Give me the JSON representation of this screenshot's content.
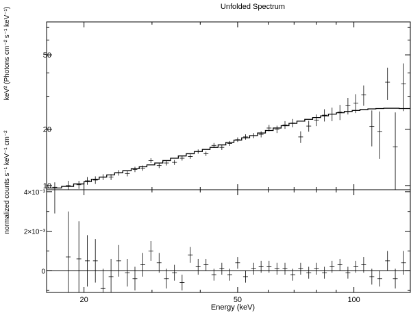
{
  "chart_data": [
    {
      "type": "scatter",
      "title": "Unfolded Spectrum",
      "xlabel": "Energy (keV)",
      "ylabel": "keV² (Photons cm⁻² s⁻¹ keV⁻¹)",
      "x_scale": "log",
      "y_scale": "log",
      "xlim": [
        16,
        140
      ],
      "ylim": [
        9.5,
        75
      ],
      "xticks": [
        20,
        50,
        100
      ],
      "yticks": [
        {
          "value": 10,
          "label": "10"
        },
        {
          "value": 20,
          "label": "20"
        },
        {
          "value": 50,
          "label": "50"
        }
      ],
      "series": [
        {
          "kind": "data_with_errorbars",
          "x": [
            16.8,
            18.2,
            19.4,
            20.4,
            21.4,
            22.4,
            23.5,
            24.6,
            25.9,
            27.1,
            28.4,
            29.8,
            31.3,
            32.7,
            34.3,
            35.9,
            37.7,
            39.5,
            41.4,
            43.4,
            45.5,
            47.7,
            50.0,
            52.4,
            55.0,
            57.5,
            60.3,
            63.2,
            66.3,
            69.5,
            72.8,
            76.4,
            80.0,
            83.9,
            87.8,
            92.0,
            96.5,
            101.2,
            106.0,
            111.3,
            116.7,
            122.2,
            128.0,
            134.5
          ],
          "y": [
            9.8,
            10.0,
            10.1,
            10.6,
            10.7,
            11.1,
            11.1,
            11.7,
            11.6,
            12.2,
            12.4,
            13.6,
            12.8,
            13.2,
            13.3,
            14.0,
            14.3,
            15.2,
            14.8,
            16.4,
            16.0,
            16.8,
            17.6,
            18.2,
            18.5,
            18.8,
            20.3,
            20.0,
            21.1,
            21.6,
            18.2,
            20.8,
            22.4,
            23.8,
            24.1,
            24.7,
            26.7,
            27.6,
            30.5,
            20.7,
            19.4,
            35.7,
            16.1,
            35.0
          ],
          "yerr": [
            0.6,
            0.6,
            0.5,
            0.5,
            0.5,
            0.4,
            0.4,
            0.4,
            0.4,
            0.4,
            0.4,
            0.4,
            0.4,
            0.4,
            0.4,
            0.4,
            0.4,
            0.4,
            0.4,
            0.5,
            0.5,
            0.5,
            0.5,
            0.6,
            0.6,
            0.7,
            0.8,
            0.9,
            1.0,
            1.1,
            1.3,
            1.4,
            1.6,
            1.8,
            2.0,
            2.3,
            2.7,
            3.2,
            3.8,
            4.5,
            5.5,
            7.0,
            8.5,
            10.0
          ]
        },
        {
          "kind": "model_step",
          "x_edges": [
            16.0,
            17.5,
            18.8,
            20.0,
            20.9,
            21.9,
            22.9,
            24.0,
            25.2,
            26.5,
            27.8,
            29.1,
            30.5,
            32.0,
            33.5,
            35.1,
            36.8,
            38.6,
            40.5,
            42.4,
            44.5,
            46.6,
            48.9,
            51.2,
            53.7,
            56.3,
            59.0,
            61.8,
            64.8,
            67.9,
            71.2,
            74.6,
            78.2,
            82.0,
            85.9,
            90.1,
            94.4,
            99.0,
            103.7,
            108.7,
            114.0,
            119.5,
            125.0,
            131.0,
            140.0
          ],
          "y": [
            9.7,
            9.9,
            10.2,
            10.5,
            10.8,
            11.1,
            11.4,
            11.7,
            12.0,
            12.3,
            12.6,
            12.9,
            13.2,
            13.6,
            14.0,
            14.4,
            14.8,
            15.2,
            15.6,
            16.0,
            16.5,
            17.0,
            17.5,
            18.0,
            18.5,
            19.1,
            19.7,
            20.3,
            20.9,
            21.5,
            22.1,
            22.6,
            23.1,
            23.6,
            24.1,
            24.5,
            24.9,
            25.2,
            25.5,
            25.7,
            25.8,
            25.9,
            25.9,
            25.8
          ]
        }
      ]
    },
    {
      "type": "scatter",
      "xlabel": "Energy (keV)",
      "ylabel": "normalized counts s⁻¹ keV⁻¹ cm⁻²",
      "x_scale": "log",
      "xlim": [
        16,
        140
      ],
      "ylim": [
        -0.0011,
        0.0041
      ],
      "xticks": [
        {
          "value": 20,
          "label": "20"
        },
        {
          "value": 50,
          "label": "50"
        },
        {
          "value": 100,
          "label": "100"
        }
      ],
      "yticks": [
        {
          "value": 0,
          "label": "0"
        },
        {
          "value": 0.002,
          "label": "2×10⁻³"
        },
        {
          "value": 0.004,
          "label": "4×10⁻³"
        }
      ],
      "zero_line": 0,
      "series": [
        {
          "kind": "data_with_errorbars",
          "x": [
            16.8,
            18.2,
            19.4,
            20.4,
            21.4,
            22.4,
            23.5,
            24.6,
            25.9,
            27.1,
            28.4,
            29.8,
            31.3,
            32.7,
            34.3,
            35.9,
            37.7,
            39.5,
            41.4,
            43.4,
            45.5,
            47.7,
            50.0,
            52.4,
            55.0,
            57.5,
            60.3,
            63.2,
            66.3,
            69.5,
            72.8,
            76.4,
            80.0,
            83.9,
            87.8,
            92.0,
            96.5,
            101.2,
            106.0,
            111.3,
            116.7,
            122.2,
            128.0,
            134.5
          ],
          "y": [
            0.0041,
            0.0007,
            0.0006,
            0.0005,
            0.0005,
            -0.0009,
            -0.0003,
            0.0005,
            -0.0001,
            -0.0004,
            0.0003,
            0.001,
            0.0004,
            -0.0004,
            -0.0001,
            -0.0006,
            0.0008,
            0.0002,
            0.0003,
            -0.0002,
            0.0001,
            -0.0002,
            0.0004,
            -0.0003,
            0.0001,
            0.0002,
            0.0002,
            0.0001,
            0.0001,
            -0.0002,
            0.0001,
            -0.0001,
            0.0001,
            -0.0001,
            0.0002,
            0.0003,
            -0.0001,
            0.0002,
            0.0003,
            -0.0003,
            -0.0004,
            0.0005,
            -0.0004,
            0.0004
          ],
          "yerr": [
            0.0012,
            0.0023,
            0.0019,
            0.0013,
            0.0011,
            0.001,
            0.0009,
            0.0008,
            0.0007,
            0.0006,
            0.0006,
            0.0005,
            0.0005,
            0.0005,
            0.0004,
            0.0004,
            0.0004,
            0.0004,
            0.0003,
            0.0003,
            0.0003,
            0.0003,
            0.0003,
            0.0003,
            0.0003,
            0.0003,
            0.0003,
            0.0003,
            0.0003,
            0.0003,
            0.0003,
            0.0003,
            0.0003,
            0.0003,
            0.0003,
            0.0003,
            0.0003,
            0.0003,
            0.0004,
            0.0004,
            0.0004,
            0.0005,
            0.0005,
            0.0006
          ]
        }
      ]
    }
  ]
}
